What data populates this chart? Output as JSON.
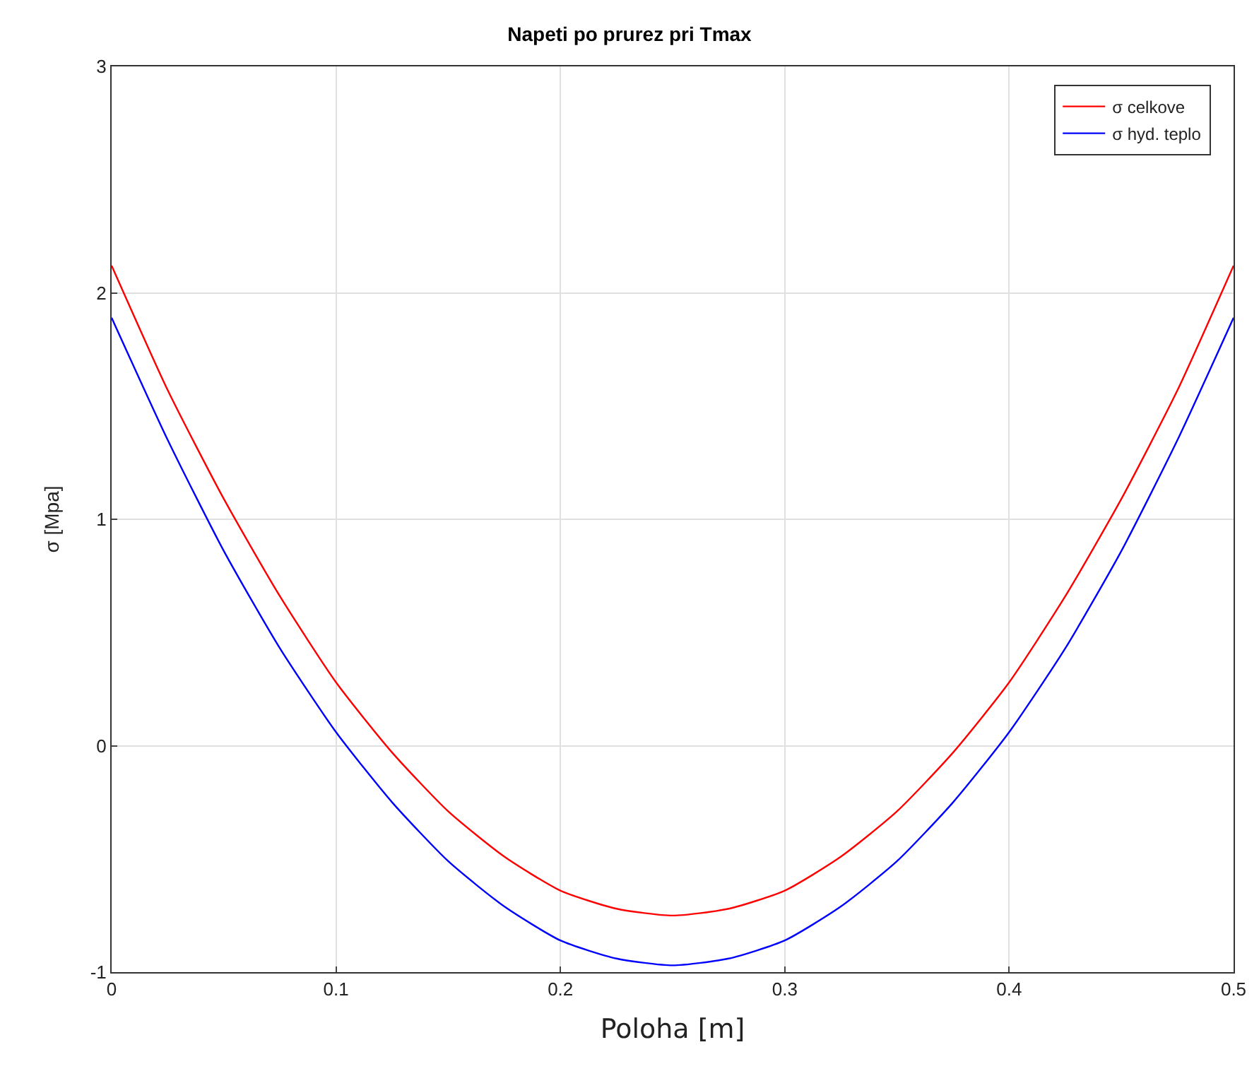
{
  "chart_data": {
    "type": "line",
    "title": "Napeti po prurez pri Tmax",
    "xlabel": "Poloha [m]",
    "ylabel": "σ [Mpa]",
    "x": [
      0,
      0.025,
      0.05,
      0.075,
      0.1,
      0.125,
      0.15,
      0.175,
      0.2,
      0.225,
      0.25,
      0.275,
      0.3,
      0.325,
      0.35,
      0.375,
      0.4,
      0.425,
      0.45,
      0.475,
      0.5
    ],
    "series": [
      {
        "name": "σ celkove",
        "color": "#ff0000",
        "values": [
          2.12,
          1.57,
          1.09,
          0.66,
          0.28,
          -0.03,
          -0.29,
          -0.49,
          -0.64,
          -0.72,
          -0.75,
          -0.72,
          -0.64,
          -0.49,
          -0.29,
          -0.03,
          0.28,
          0.66,
          1.09,
          1.57,
          2.12
        ]
      },
      {
        "name": "σ hyd. teplo",
        "color": "#0000ff",
        "values": [
          1.89,
          1.35,
          0.86,
          0.43,
          0.06,
          -0.25,
          -0.51,
          -0.71,
          -0.86,
          -0.94,
          -0.97,
          -0.94,
          -0.86,
          -0.71,
          -0.51,
          -0.25,
          0.06,
          0.43,
          0.86,
          1.35,
          1.89
        ]
      }
    ],
    "xlim": [
      0,
      0.5
    ],
    "xticks": [
      0,
      0.1,
      0.2,
      0.3,
      0.4,
      0.5
    ],
    "ylim": [
      -1,
      3
    ],
    "yticks": [
      -1,
      0,
      1,
      2,
      3
    ],
    "grid": true,
    "legend": "top right",
    "line_style": "solid",
    "marker": "none"
  }
}
